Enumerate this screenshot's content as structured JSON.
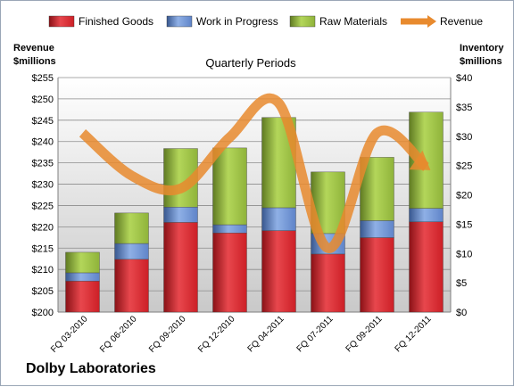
{
  "company": "Dolby Laboratories",
  "chart_data": {
    "type": "bar",
    "stacked": true,
    "title": "Quarterly Periods",
    "left_axis_title": [
      "Revenue",
      "$millions"
    ],
    "right_axis_title": [
      "Inventory",
      "$millions"
    ],
    "categories": [
      "FQ 03-2010",
      "FQ 06-2010",
      "FQ 09-2010",
      "FQ 12-2010",
      "FQ 04-2011",
      "FQ 07-2011",
      "FQ 09-2011",
      "FQ 12-2011"
    ],
    "left_axis": {
      "min": 200,
      "max": 255,
      "step": 5,
      "tick_labels": [
        "$200",
        "$205",
        "$210",
        "$215",
        "$220",
        "$225",
        "$230",
        "$235",
        "$240",
        "$245",
        "$250",
        "$255"
      ]
    },
    "right_axis": {
      "min": 0,
      "max": 40,
      "step": 5,
      "tick_labels": [
        "$0",
        "$5",
        "$10",
        "$15",
        "$20",
        "$25",
        "$30",
        "$35",
        "$40"
      ]
    },
    "legend_position": "top",
    "series": [
      {
        "name": "Finished Goods",
        "axis": "right",
        "color": "#cc1f26",
        "values": [
          5.3,
          9.0,
          15.3,
          13.5,
          13.9,
          9.9,
          12.7,
          15.4
        ]
      },
      {
        "name": "Work in Progress",
        "axis": "right",
        "color": "#5f84c8",
        "values": [
          1.4,
          2.7,
          2.6,
          1.4,
          3.9,
          3.5,
          2.9,
          2.3
        ]
      },
      {
        "name": "Raw Materials",
        "axis": "right",
        "color": "#8fb33a",
        "values": [
          3.5,
          5.2,
          10.0,
          13.1,
          15.4,
          10.5,
          10.8,
          16.4
        ]
      },
      {
        "name": "Revenue",
        "axis": "left",
        "type": "line",
        "color": "#e88a2e",
        "values": [
          242,
          232,
          229,
          241,
          249,
          215,
          242,
          234
        ]
      }
    ],
    "grid": true
  }
}
